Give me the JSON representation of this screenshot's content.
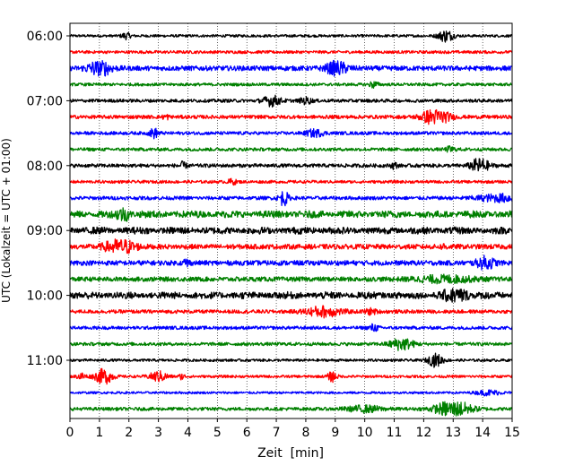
{
  "chart_data": {
    "type": "line",
    "title": "",
    "xlabel": "Zeit  [min]",
    "ylabel": "UTC (Lokalzeit = UTC + 01:00)",
    "xlim": [
      0,
      15
    ],
    "x_ticks": [
      "0",
      "1",
      "2",
      "3",
      "4",
      "5",
      "6",
      "7",
      "8",
      "9",
      "10",
      "11",
      "12",
      "13",
      "14",
      "15"
    ],
    "y_ticks": [
      "06:00",
      "07:00",
      "08:00",
      "09:00",
      "10:00",
      "11:00"
    ],
    "grid": {
      "x": "dotted vertical lines at each minute",
      "y": "off"
    },
    "trace_colors": [
      "#000000",
      "#ff0000",
      "#0000ff",
      "#008000"
    ],
    "row_interval_minutes": 15,
    "series": [
      {
        "start": "06:00",
        "color": "#000000",
        "noise": 0.16,
        "events": [
          {
            "t": 1.9,
            "amp": 0.35,
            "dur": 0.15
          },
          {
            "t": 12.75,
            "amp": 0.7,
            "dur": 0.25
          }
        ]
      },
      {
        "start": "06:15",
        "color": "#ff0000",
        "noise": 0.18,
        "events": []
      },
      {
        "start": "06:30",
        "color": "#0000ff",
        "noise": 0.3,
        "events": [
          {
            "t": 1.0,
            "amp": 0.9,
            "dur": 0.4
          },
          {
            "t": 9.05,
            "amp": 0.8,
            "dur": 0.35
          }
        ]
      },
      {
        "start": "06:45",
        "color": "#008000",
        "noise": 0.18,
        "events": [
          {
            "t": 10.3,
            "amp": 0.35,
            "dur": 0.15
          }
        ]
      },
      {
        "start": "07:00",
        "color": "#000000",
        "noise": 0.2,
        "events": [
          {
            "t": 6.85,
            "amp": 0.6,
            "dur": 0.3
          },
          {
            "t": 8.0,
            "amp": 0.35,
            "dur": 0.2
          }
        ]
      },
      {
        "start": "07:15",
        "color": "#ff0000",
        "noise": 0.22,
        "events": [
          {
            "t": 3.25,
            "amp": 0.3,
            "dur": 0.1
          },
          {
            "t": 12.4,
            "amp": 1.0,
            "dur": 0.45
          }
        ]
      },
      {
        "start": "07:30",
        "color": "#0000ff",
        "noise": 0.2,
        "events": [
          {
            "t": 2.85,
            "amp": 0.55,
            "dur": 0.15
          },
          {
            "t": 8.3,
            "amp": 0.4,
            "dur": 0.3
          }
        ]
      },
      {
        "start": "07:45",
        "color": "#008000",
        "noise": 0.2,
        "events": [
          {
            "t": 12.9,
            "amp": 0.3,
            "dur": 0.15
          }
        ]
      },
      {
        "start": "08:00",
        "color": "#000000",
        "noise": 0.22,
        "events": [
          {
            "t": 3.8,
            "amp": 0.35,
            "dur": 0.15
          },
          {
            "t": 11.0,
            "amp": 0.35,
            "dur": 0.1
          },
          {
            "t": 13.9,
            "amp": 0.85,
            "dur": 0.3
          }
        ]
      },
      {
        "start": "08:15",
        "color": "#ff0000",
        "noise": 0.18,
        "events": [
          {
            "t": 5.5,
            "amp": 0.3,
            "dur": 0.15
          }
        ]
      },
      {
        "start": "08:30",
        "color": "#0000ff",
        "noise": 0.22,
        "events": [
          {
            "t": 7.25,
            "amp": 0.9,
            "dur": 0.15
          },
          {
            "t": 14.6,
            "amp": 0.4,
            "dur": 0.8
          }
        ]
      },
      {
        "start": "08:45",
        "color": "#008000",
        "noise": 0.45,
        "events": [
          {
            "t": 1.8,
            "amp": 0.9,
            "dur": 0.2
          }
        ]
      },
      {
        "start": "09:00",
        "color": "#000000",
        "noise": 0.45,
        "events": []
      },
      {
        "start": "09:15",
        "color": "#ff0000",
        "noise": 0.3,
        "events": [
          {
            "t": 1.7,
            "amp": 0.9,
            "dur": 0.5
          },
          {
            "t": 12.7,
            "amp": 0.3,
            "dur": 0.1
          }
        ]
      },
      {
        "start": "09:30",
        "color": "#0000ff",
        "noise": 0.3,
        "events": [
          {
            "t": 3.95,
            "amp": 0.5,
            "dur": 0.1
          },
          {
            "t": 14.1,
            "amp": 0.7,
            "dur": 0.3
          }
        ]
      },
      {
        "start": "09:45",
        "color": "#008000",
        "noise": 0.28,
        "events": [
          {
            "t": 12.7,
            "amp": 0.35,
            "dur": 1.0
          }
        ]
      },
      {
        "start": "10:00",
        "color": "#000000",
        "noise": 0.45,
        "events": [
          {
            "t": 13.1,
            "amp": 0.8,
            "dur": 0.4
          }
        ]
      },
      {
        "start": "10:15",
        "color": "#ff0000",
        "noise": 0.22,
        "events": [
          {
            "t": 8.6,
            "amp": 0.6,
            "dur": 0.6
          },
          {
            "t": 10.2,
            "amp": 0.3,
            "dur": 0.2
          }
        ]
      },
      {
        "start": "10:30",
        "color": "#0000ff",
        "noise": 0.2,
        "events": [
          {
            "t": 10.3,
            "amp": 0.4,
            "dur": 0.15
          }
        ]
      },
      {
        "start": "10:45",
        "color": "#008000",
        "noise": 0.2,
        "events": [
          {
            "t": 11.25,
            "amp": 0.7,
            "dur": 0.4
          }
        ]
      },
      {
        "start": "11:00",
        "color": "#000000",
        "noise": 0.16,
        "events": [
          {
            "t": 12.4,
            "amp": 0.75,
            "dur": 0.25
          }
        ]
      },
      {
        "start": "11:15",
        "color": "#ff0000",
        "noise": 0.16,
        "events": [
          {
            "t": 0.4,
            "amp": 0.4,
            "dur": 0.15
          },
          {
            "t": 1.15,
            "amp": 0.9,
            "dur": 0.3
          },
          {
            "t": 3.0,
            "amp": 0.6,
            "dur": 0.3
          },
          {
            "t": 3.8,
            "amp": 0.3,
            "dur": 0.1
          },
          {
            "t": 8.9,
            "amp": 0.6,
            "dur": 0.15
          }
        ]
      },
      {
        "start": "11:30",
        "color": "#0000ff",
        "noise": 0.14,
        "events": [
          {
            "t": 14.2,
            "amp": 0.3,
            "dur": 0.4
          }
        ]
      },
      {
        "start": "11:45",
        "color": "#008000",
        "noise": 0.2,
        "events": [
          {
            "t": 13.0,
            "amp": 1.0,
            "dur": 0.6
          },
          {
            "t": 10.0,
            "amp": 0.35,
            "dur": 0.6
          }
        ]
      }
    ]
  }
}
